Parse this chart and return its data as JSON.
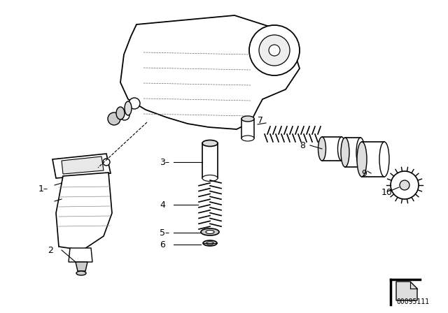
{
  "bg_color": "#ffffff",
  "line_color": "#000000",
  "part_number": "00095111",
  "figsize": [
    6.4,
    4.48
  ],
  "dpi": 100
}
